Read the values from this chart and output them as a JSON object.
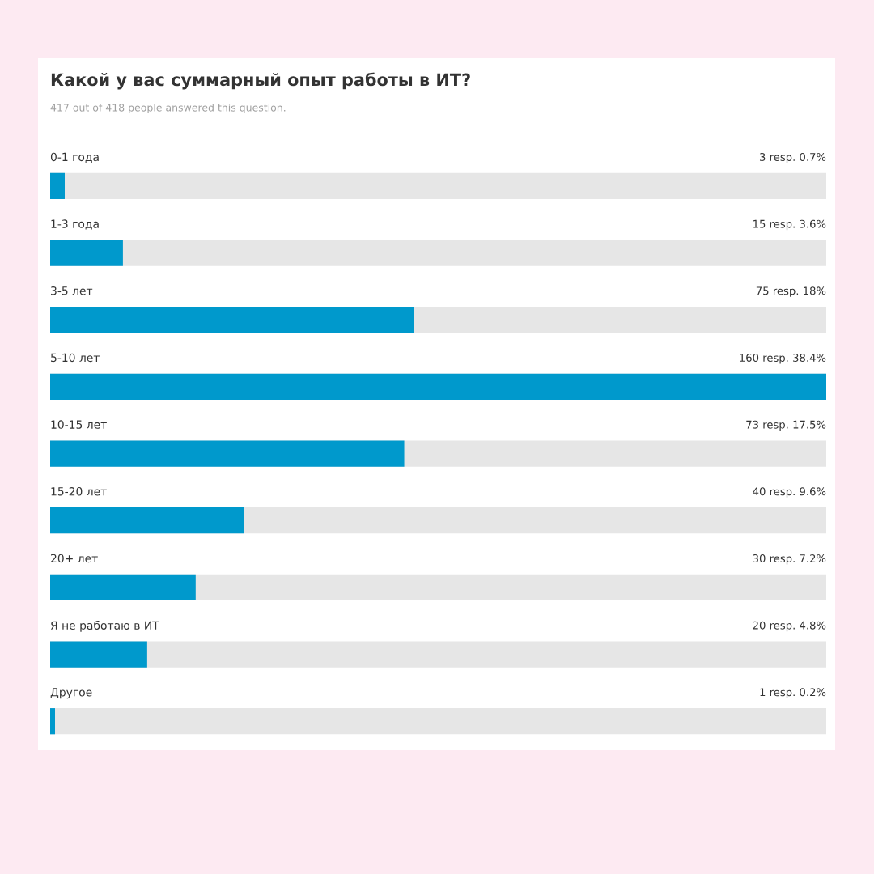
{
  "chart_data": {
    "type": "bar",
    "orientation": "horizontal",
    "title": "Какой у вас суммарный опыт работы в ИТ?",
    "subtitle": "417 out of 418 people answered this question.",
    "categories": [
      "0-1 года",
      "1-3 года",
      "3-5 лет",
      "5-10 лет",
      "10-15 лет",
      "15-20 лет",
      "20+ лет",
      "Я не работаю в ИТ",
      "Другое"
    ],
    "values": [
      3,
      15,
      75,
      160,
      73,
      40,
      30,
      20,
      1
    ],
    "value_labels": [
      "3 resp. 0.7%",
      "15 resp. 3.6%",
      "75 resp. 18%",
      "160 resp. 38.4%",
      "73 resp. 17.5%",
      "40 resp. 9.6%",
      "30 resp. 7.2%",
      "20 resp. 4.8%",
      "1 resp. 0.2%"
    ],
    "color": "#0099cc"
  }
}
